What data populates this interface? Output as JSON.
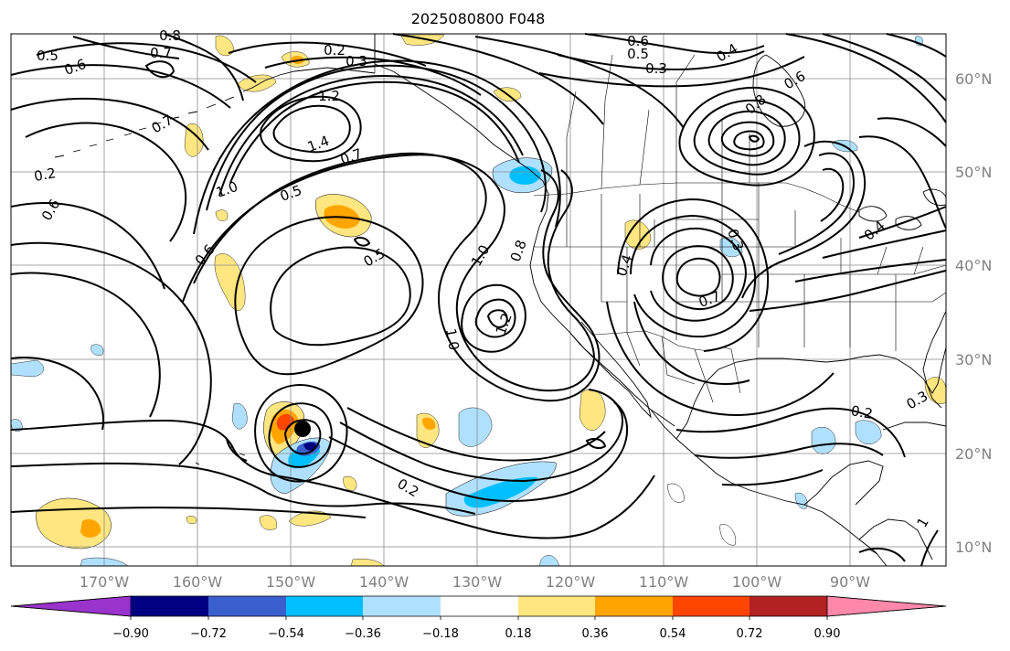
{
  "title": "2025080800 F048",
  "lat_ticks": [
    "60°N",
    "50°N",
    "40°N",
    "30°N",
    "20°N",
    "10°N"
  ],
  "lon_ticks": [
    "170°W",
    "160°W",
    "150°W",
    "140°W",
    "130°W",
    "120°W",
    "110°W",
    "100°W",
    "90°W"
  ],
  "colorbar": {
    "tick_labels": [
      "−0.90",
      "−0.72",
      "−0.54",
      "−0.36",
      "−0.18",
      "0.18",
      "0.36",
      "0.54",
      "0.72",
      "0.90"
    ],
    "colors": [
      "#9933cc",
      "#000080",
      "#3a5fcd",
      "#00bfff",
      "#b0e0ff",
      "#ffffff",
      "#ffe680",
      "#ffa500",
      "#ff4500",
      "#b22222",
      "#ff88aa"
    ]
  },
  "contour_labels": [
    "0.5",
    "0.6",
    "0.7",
    "0.8",
    "0.2",
    "0.3",
    "0.6",
    "0.5",
    "0.3",
    "0.4",
    "0.6",
    "0.8",
    "1.2",
    "1.4",
    "1.0",
    "0.5",
    "0.7",
    "0.6",
    "0.5",
    "1.0",
    "0.8",
    "1.2",
    "1.0",
    "0.7",
    "0.4",
    "0.3",
    "0.2",
    "0.4",
    "0.2",
    "0.3",
    "0.2",
    "0.6",
    "0.7",
    "1"
  ],
  "storm_marker": "storm-center"
}
